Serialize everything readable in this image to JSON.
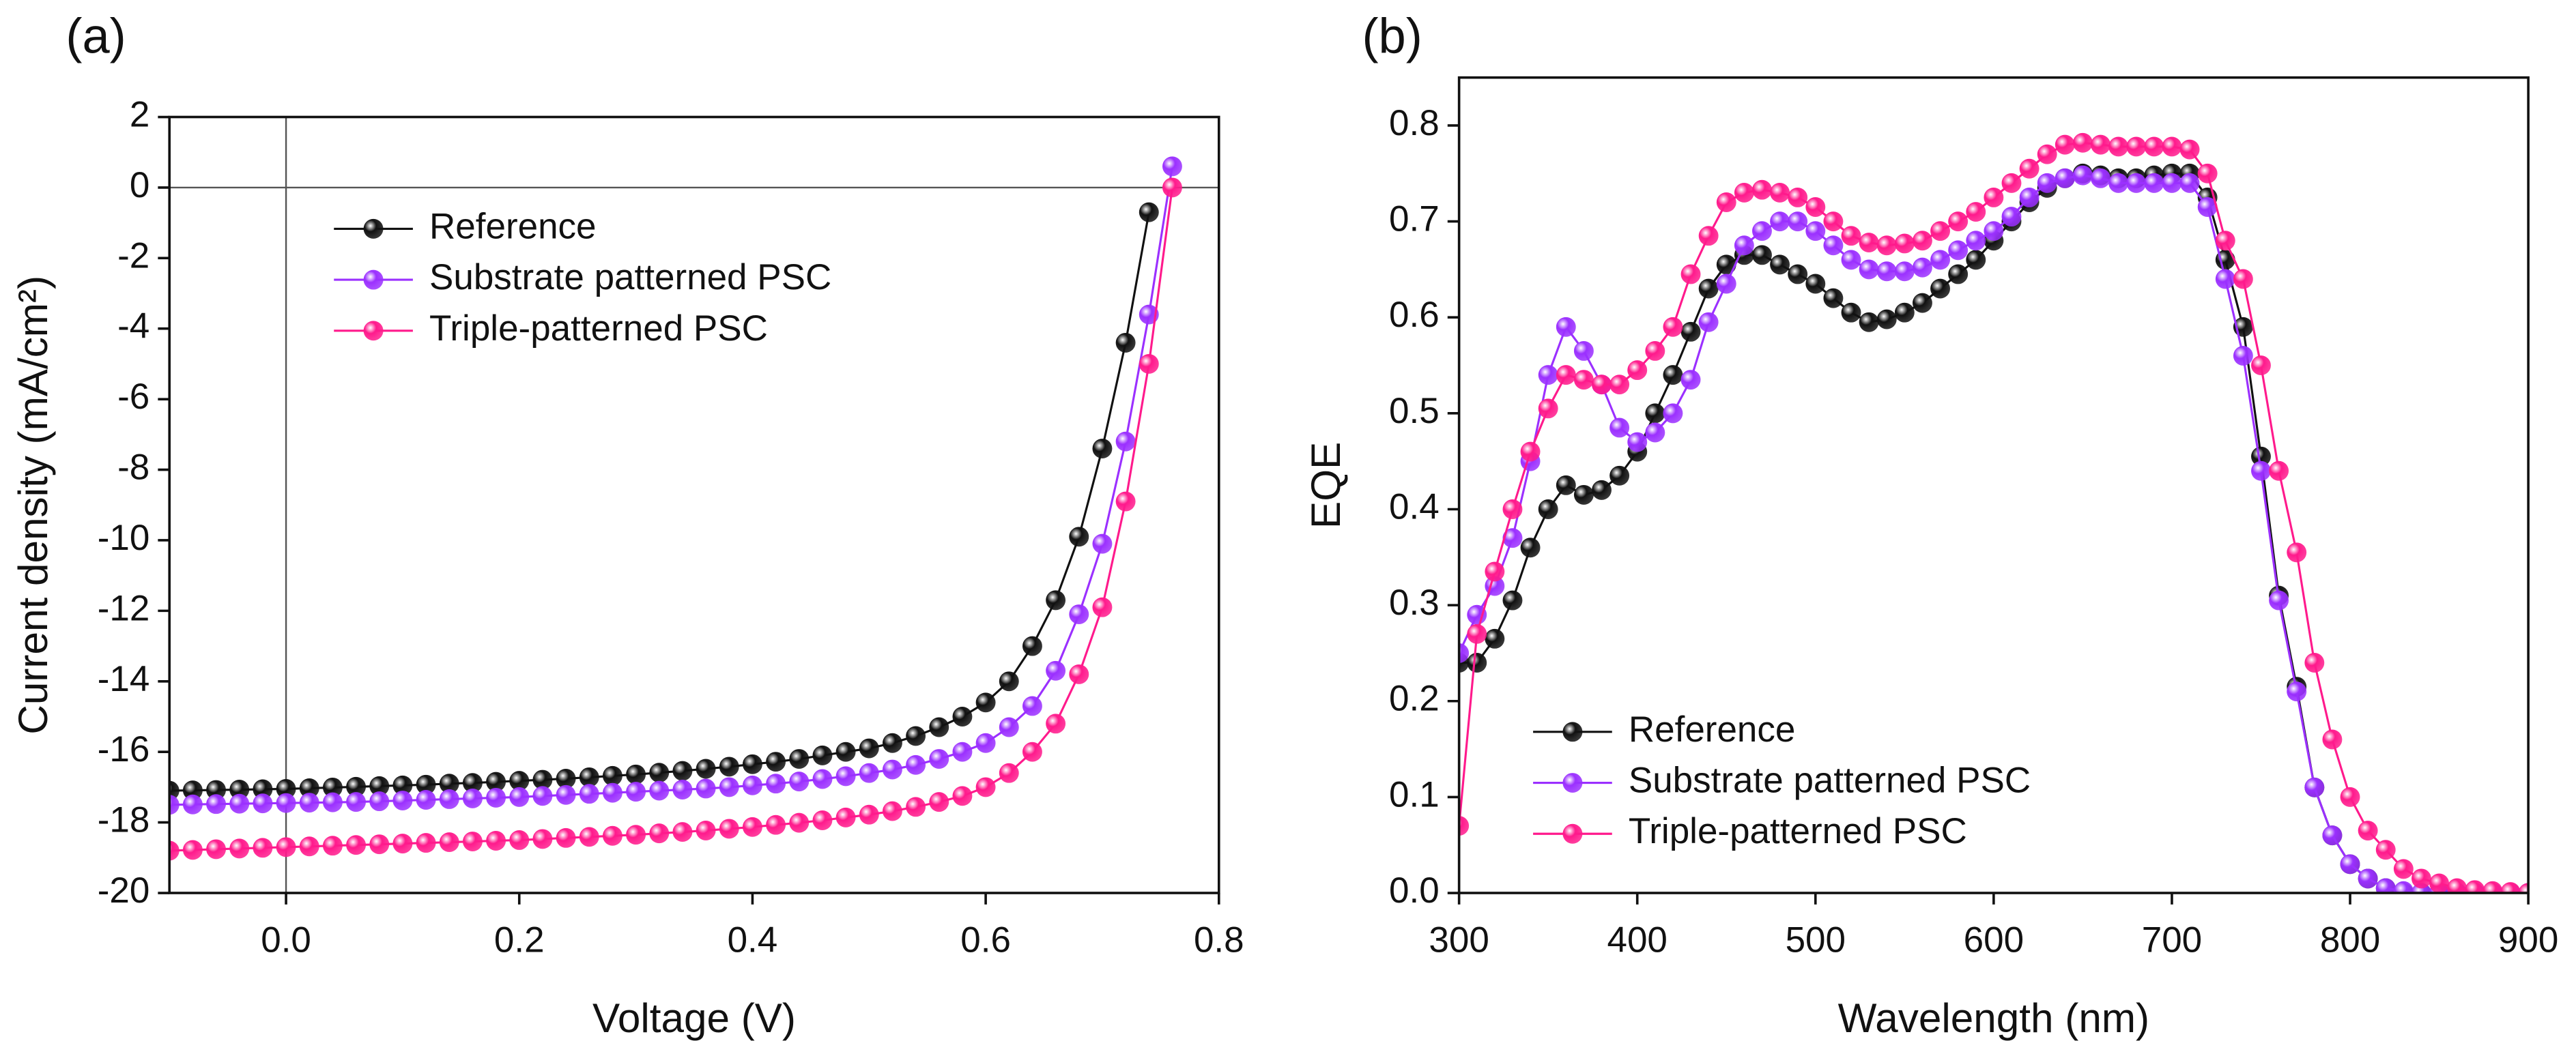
{
  "chart_data": [
    {
      "type": "line",
      "panel_label": "(a)",
      "x_label": "Voltage (V)",
      "y_label": "Current density (mA/cm²)",
      "xlim": [
        -0.1,
        0.8
      ],
      "xticks": [
        {
          "value": 0,
          "label": "0.0"
        },
        0.2,
        0.4,
        0.6,
        0.8
      ],
      "ylim": [
        -20,
        2
      ],
      "yticks": [
        -20,
        -18,
        -16,
        -14,
        -12,
        -10,
        -8,
        -6,
        -4,
        -2,
        0,
        2
      ],
      "legend": "upper left",
      "x": [
        -0.1,
        -0.08,
        -0.06,
        -0.04,
        -0.02,
        0,
        0.02,
        0.04,
        0.06,
        0.08,
        0.1,
        0.12,
        0.14,
        0.16,
        0.18,
        0.2,
        0.22,
        0.24,
        0.26,
        0.28,
        0.3,
        0.32,
        0.34,
        0.36,
        0.38,
        0.4,
        0.42,
        0.44,
        0.46,
        0.48,
        0.5,
        0.52,
        0.54,
        0.56,
        0.58,
        0.6,
        0.62,
        0.64,
        0.66,
        0.68,
        0.7,
        0.72,
        0.74,
        0.76
      ],
      "series": [
        {
          "name": "Reference",
          "color": "#111111",
          "values": [
            -17.1,
            -17.09,
            -17.08,
            -17.07,
            -17.06,
            -17.05,
            -17.03,
            -17.01,
            -16.99,
            -16.97,
            -16.95,
            -16.93,
            -16.9,
            -16.88,
            -16.85,
            -16.82,
            -16.79,
            -16.76,
            -16.72,
            -16.68,
            -16.64,
            -16.59,
            -16.54,
            -16.48,
            -16.42,
            -16.35,
            -16.28,
            -16.2,
            -16.1,
            -16.0,
            -15.9,
            -15.75,
            -15.55,
            -15.3,
            -15.0,
            -14.6,
            -14.0,
            -13.0,
            -11.7,
            -9.9,
            -7.4,
            -4.4,
            -0.7,
            null
          ]
        },
        {
          "name": "Substrate patterned PSC",
          "color": "#9b30ff",
          "values": [
            -17.5,
            -17.49,
            -17.48,
            -17.47,
            -17.46,
            -17.45,
            -17.44,
            -17.43,
            -17.42,
            -17.4,
            -17.38,
            -17.36,
            -17.34,
            -17.32,
            -17.3,
            -17.28,
            -17.25,
            -17.22,
            -17.19,
            -17.16,
            -17.13,
            -17.1,
            -17.07,
            -17.04,
            -17.0,
            -16.95,
            -16.9,
            -16.84,
            -16.77,
            -16.69,
            -16.6,
            -16.5,
            -16.37,
            -16.2,
            -16.0,
            -15.75,
            -15.3,
            -14.7,
            -13.7,
            -12.1,
            -10.1,
            -7.2,
            -3.6,
            0.6
          ]
        },
        {
          "name": "Triple-patterned PSC",
          "color": "#ff1a8c",
          "values": [
            -18.8,
            -18.78,
            -18.76,
            -18.74,
            -18.72,
            -18.7,
            -18.68,
            -18.66,
            -18.64,
            -18.62,
            -18.6,
            -18.58,
            -18.56,
            -18.54,
            -18.52,
            -18.5,
            -18.47,
            -18.44,
            -18.41,
            -18.38,
            -18.35,
            -18.31,
            -18.27,
            -18.23,
            -18.18,
            -18.13,
            -18.07,
            -18.01,
            -17.94,
            -17.86,
            -17.78,
            -17.68,
            -17.56,
            -17.42,
            -17.25,
            -17.0,
            -16.6,
            -16.0,
            -15.2,
            -13.8,
            -11.9,
            -8.9,
            -5.0,
            0.0
          ]
        }
      ]
    },
    {
      "type": "line",
      "panel_label": "(b)",
      "x_label": "Wavelength (nm)",
      "y_label": "EQE",
      "xlim": [
        300,
        900
      ],
      "xticks": [
        300,
        400,
        500,
        600,
        700,
        800,
        900
      ],
      "ylim": [
        0,
        0.85
      ],
      "yticks": [
        {
          "value": 0,
          "label": "0.0"
        },
        0.1,
        0.2,
        0.3,
        0.4,
        0.5,
        0.6,
        0.7,
        0.8
      ],
      "legend": "lower left",
      "x": [
        300,
        310,
        320,
        330,
        340,
        350,
        360,
        370,
        380,
        390,
        400,
        410,
        420,
        430,
        440,
        450,
        460,
        470,
        480,
        490,
        500,
        510,
        520,
        530,
        540,
        550,
        560,
        570,
        580,
        590,
        600,
        610,
        620,
        630,
        640,
        650,
        660,
        670,
        680,
        690,
        700,
        710,
        720,
        730,
        740,
        750,
        760,
        770,
        780,
        790,
        800,
        810,
        820,
        830,
        840,
        850,
        860,
        870,
        880,
        890,
        900
      ],
      "series": [
        {
          "name": "Reference",
          "color": "#111111",
          "values": [
            0.24,
            0.24,
            0.265,
            0.305,
            0.36,
            0.4,
            0.425,
            0.415,
            0.42,
            0.435,
            0.46,
            0.5,
            0.54,
            0.585,
            0.63,
            0.655,
            0.665,
            0.665,
            0.655,
            0.645,
            0.635,
            0.62,
            0.605,
            0.595,
            0.598,
            0.605,
            0.615,
            0.63,
            0.645,
            0.66,
            0.68,
            0.7,
            0.72,
            0.735,
            0.745,
            0.75,
            0.748,
            0.745,
            0.745,
            0.748,
            0.75,
            0.75,
            0.725,
            0.66,
            0.59,
            0.455,
            0.31,
            0.215,
            0.11,
            0.06,
            0.03,
            0.015,
            0.005,
            0,
            0,
            0,
            0,
            0,
            0,
            0,
            0
          ]
        },
        {
          "name": "Substrate patterned PSC",
          "color": "#9b30ff",
          "values": [
            0.25,
            0.29,
            0.32,
            0.37,
            0.45,
            0.54,
            0.59,
            0.565,
            0.53,
            0.485,
            0.47,
            0.48,
            0.5,
            0.535,
            0.595,
            0.635,
            0.675,
            0.69,
            0.7,
            0.7,
            0.69,
            0.675,
            0.66,
            0.65,
            0.648,
            0.648,
            0.652,
            0.66,
            0.67,
            0.68,
            0.69,
            0.705,
            0.725,
            0.74,
            0.745,
            0.748,
            0.745,
            0.74,
            0.74,
            0.74,
            0.74,
            0.74,
            0.715,
            0.64,
            0.56,
            0.44,
            0.305,
            0.21,
            0.11,
            0.06,
            0.03,
            0.015,
            0.005,
            0.002,
            0,
            0,
            0,
            0,
            0,
            0,
            0
          ]
        },
        {
          "name": "Triple-patterned PSC",
          "color": "#ff1a8c",
          "values": [
            0.07,
            0.27,
            0.335,
            0.4,
            0.46,
            0.505,
            0.54,
            0.535,
            0.53,
            0.53,
            0.545,
            0.565,
            0.59,
            0.645,
            0.685,
            0.72,
            0.73,
            0.733,
            0.73,
            0.725,
            0.715,
            0.7,
            0.685,
            0.678,
            0.675,
            0.677,
            0.68,
            0.69,
            0.7,
            0.71,
            0.725,
            0.74,
            0.755,
            0.77,
            0.78,
            0.782,
            0.78,
            0.778,
            0.778,
            0.778,
            0.778,
            0.775,
            0.75,
            0.68,
            0.64,
            0.55,
            0.44,
            0.355,
            0.24,
            0.16,
            0.1,
            0.065,
            0.045,
            0.025,
            0.015,
            0.01,
            0.005,
            0.003,
            0.002,
            0.001,
            0
          ]
        }
      ]
    }
  ]
}
